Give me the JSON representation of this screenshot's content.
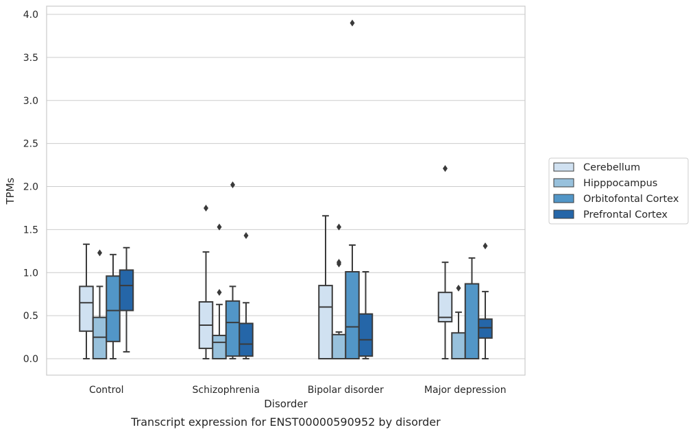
{
  "chart_data": {
    "type": "box",
    "title": "",
    "caption": "Transcript expression for ENST00000590952 by disorder",
    "xlabel": "Disorder",
    "ylabel": "TPMs",
    "ylim": [
      -0.19,
      4.09
    ],
    "yticks": [
      "0.0",
      "0.5",
      "1.0",
      "1.5",
      "2.0",
      "2.5",
      "3.0",
      "3.5",
      "4.0"
    ],
    "grid": "horizontal",
    "legend_position": "right",
    "categories": [
      "Control",
      "Schizophrenia",
      "Bipolar disorder",
      "Major depression"
    ],
    "series": [
      {
        "name": "Cerebellum",
        "color": "#d0e1f1",
        "boxes": [
          {
            "whislo": 0.0,
            "q1": 0.32,
            "med": 0.65,
            "q3": 0.84,
            "whishi": 1.33,
            "fliers": []
          },
          {
            "whislo": 0.0,
            "q1": 0.12,
            "med": 0.39,
            "q3": 0.66,
            "whishi": 1.24,
            "fliers": [
              1.75
            ]
          },
          {
            "whislo": 0.0,
            "q1": 0.0,
            "med": 0.6,
            "q3": 0.85,
            "whishi": 1.66,
            "fliers": []
          },
          {
            "whislo": 0.0,
            "q1": 0.43,
            "med": 0.48,
            "q3": 0.77,
            "whishi": 1.12,
            "fliers": [
              2.21
            ]
          }
        ]
      },
      {
        "name": "Hipppocampus",
        "color": "#98c1dc",
        "boxes": [
          {
            "whislo": 0.0,
            "q1": 0.0,
            "med": 0.25,
            "q3": 0.48,
            "whishi": 0.84,
            "fliers": [
              1.23
            ]
          },
          {
            "whislo": 0.0,
            "q1": 0.0,
            "med": 0.19,
            "q3": 0.27,
            "whishi": 0.63,
            "fliers": [
              0.77,
              1.53
            ]
          },
          {
            "whislo": 0.0,
            "q1": 0.0,
            "med": 0.0,
            "q3": 0.28,
            "whishi": 0.31,
            "fliers": [
              1.1,
              1.12,
              1.53
            ]
          },
          {
            "whislo": 0.0,
            "q1": 0.0,
            "med": 0.0,
            "q3": 0.3,
            "whishi": 0.54,
            "fliers": [
              0.82
            ]
          }
        ]
      },
      {
        "name": "Orbitofontal Cortex",
        "color": "#5296c7",
        "boxes": [
          {
            "whislo": 0.0,
            "q1": 0.2,
            "med": 0.56,
            "q3": 0.96,
            "whishi": 1.21,
            "fliers": []
          },
          {
            "whislo": 0.0,
            "q1": 0.03,
            "med": 0.42,
            "q3": 0.67,
            "whishi": 0.84,
            "fliers": [
              2.02
            ]
          },
          {
            "whislo": 0.0,
            "q1": 0.0,
            "med": 0.37,
            "q3": 1.01,
            "whishi": 1.32,
            "fliers": [
              3.9
            ]
          },
          {
            "whislo": 0.0,
            "q1": 0.0,
            "med": 0.0,
            "q3": 0.87,
            "whishi": 1.17,
            "fliers": []
          }
        ]
      },
      {
        "name": "Prefrontal Cortex",
        "color": "#2566a8",
        "boxes": [
          {
            "whislo": 0.08,
            "q1": 0.56,
            "med": 0.85,
            "q3": 1.03,
            "whishi": 1.29,
            "fliers": []
          },
          {
            "whislo": 0.0,
            "q1": 0.03,
            "med": 0.17,
            "q3": 0.41,
            "whishi": 0.65,
            "fliers": [
              1.43
            ]
          },
          {
            "whislo": 0.0,
            "q1": 0.03,
            "med": 0.22,
            "q3": 0.52,
            "whishi": 1.01,
            "fliers": []
          },
          {
            "whislo": 0.0,
            "q1": 0.24,
            "med": 0.36,
            "q3": 0.46,
            "whishi": 0.78,
            "fliers": [
              1.31
            ]
          }
        ]
      }
    ]
  }
}
